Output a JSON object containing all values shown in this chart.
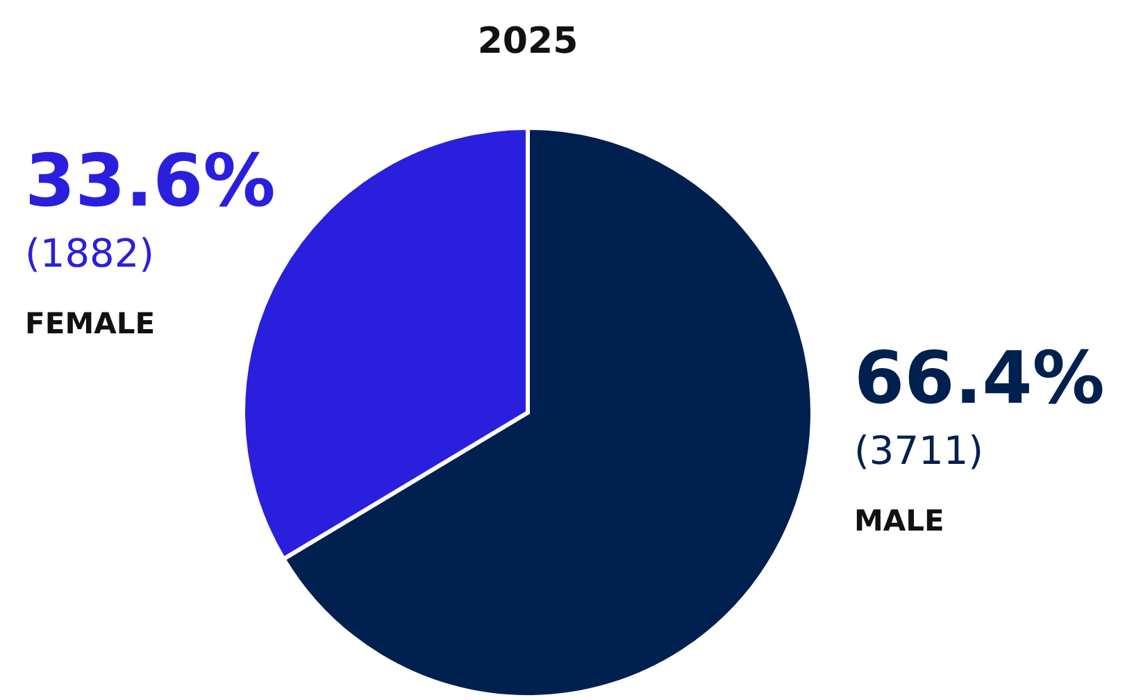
{
  "chart_data": {
    "type": "pie",
    "title": "2025",
    "categories": [
      "MALE",
      "FEMALE"
    ],
    "values": [
      66.4,
      33.6
    ],
    "value_labels": [
      "66.4%",
      "33.6%"
    ],
    "annotations": [
      "(3711)",
      "(1882)"
    ],
    "colors": [
      "#00204f",
      "#2a1fdc"
    ]
  }
}
